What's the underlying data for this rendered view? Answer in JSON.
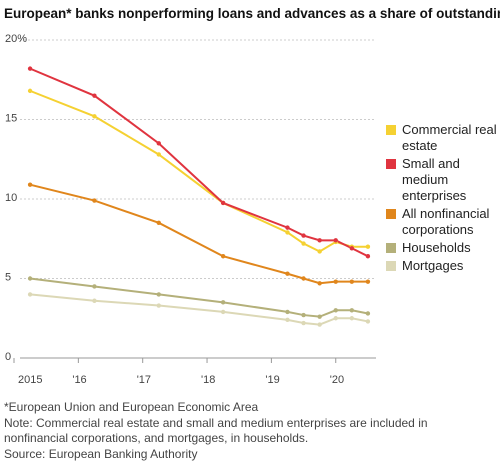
{
  "chart_data": {
    "type": "line",
    "title": "European* banks nonperforming loans and advances as a share of outstanding",
    "x": [
      2015.25,
      2016.25,
      2017.25,
      2018.25,
      2019.25,
      2019.5,
      2019.75,
      2020,
      2020.25,
      2020.5
    ],
    "xlim": [
      2015,
      2020.75
    ],
    "xticks": [
      {
        "value": 2015,
        "label": "2015"
      },
      {
        "value": 2016,
        "label": "'16"
      },
      {
        "value": 2017,
        "label": "'17"
      },
      {
        "value": 2018,
        "label": "'18"
      },
      {
        "value": 2019,
        "label": "'19"
      },
      {
        "value": 2020,
        "label": "'20"
      }
    ],
    "ylim": [
      0,
      20
    ],
    "yticks": [
      0,
      5,
      10,
      15,
      {
        "value": 20,
        "label": "20%"
      }
    ],
    "grid": true,
    "legend": "right",
    "series": [
      {
        "name": "Commercial real estate",
        "color": "#f5d132",
        "values": [
          16.8,
          15.2,
          12.8,
          9.75,
          7.9,
          7.2,
          6.7,
          7.3,
          7.0,
          7.0
        ]
      },
      {
        "name": "Small and medium enterprises",
        "color": "#e0343f",
        "values": [
          18.2,
          16.5,
          13.5,
          9.75,
          8.2,
          7.7,
          7.4,
          7.4,
          6.9,
          6.4
        ]
      },
      {
        "name": "All nonfinancial corporations",
        "color": "#e0861c",
        "values": [
          10.9,
          9.9,
          8.5,
          6.4,
          5.3,
          5.0,
          4.7,
          4.8,
          4.8,
          4.8
        ]
      },
      {
        "name": "Households",
        "color": "#b4b07a",
        "values": [
          5.0,
          4.5,
          4.0,
          3.5,
          2.9,
          2.7,
          2.6,
          3.0,
          3.0,
          2.8
        ]
      },
      {
        "name": "Mortgages",
        "color": "#dcd8b6",
        "values": [
          4.0,
          3.6,
          3.3,
          2.9,
          2.4,
          2.2,
          2.1,
          2.5,
          2.5,
          2.3
        ]
      }
    ],
    "notes": [
      "*European Union and European Economic Area",
      "Note: Commercial real estate and small and medium enterprises are included in nonfinancial corporations, and mortgages, in households.",
      "Source: European Banking Authority"
    ]
  }
}
